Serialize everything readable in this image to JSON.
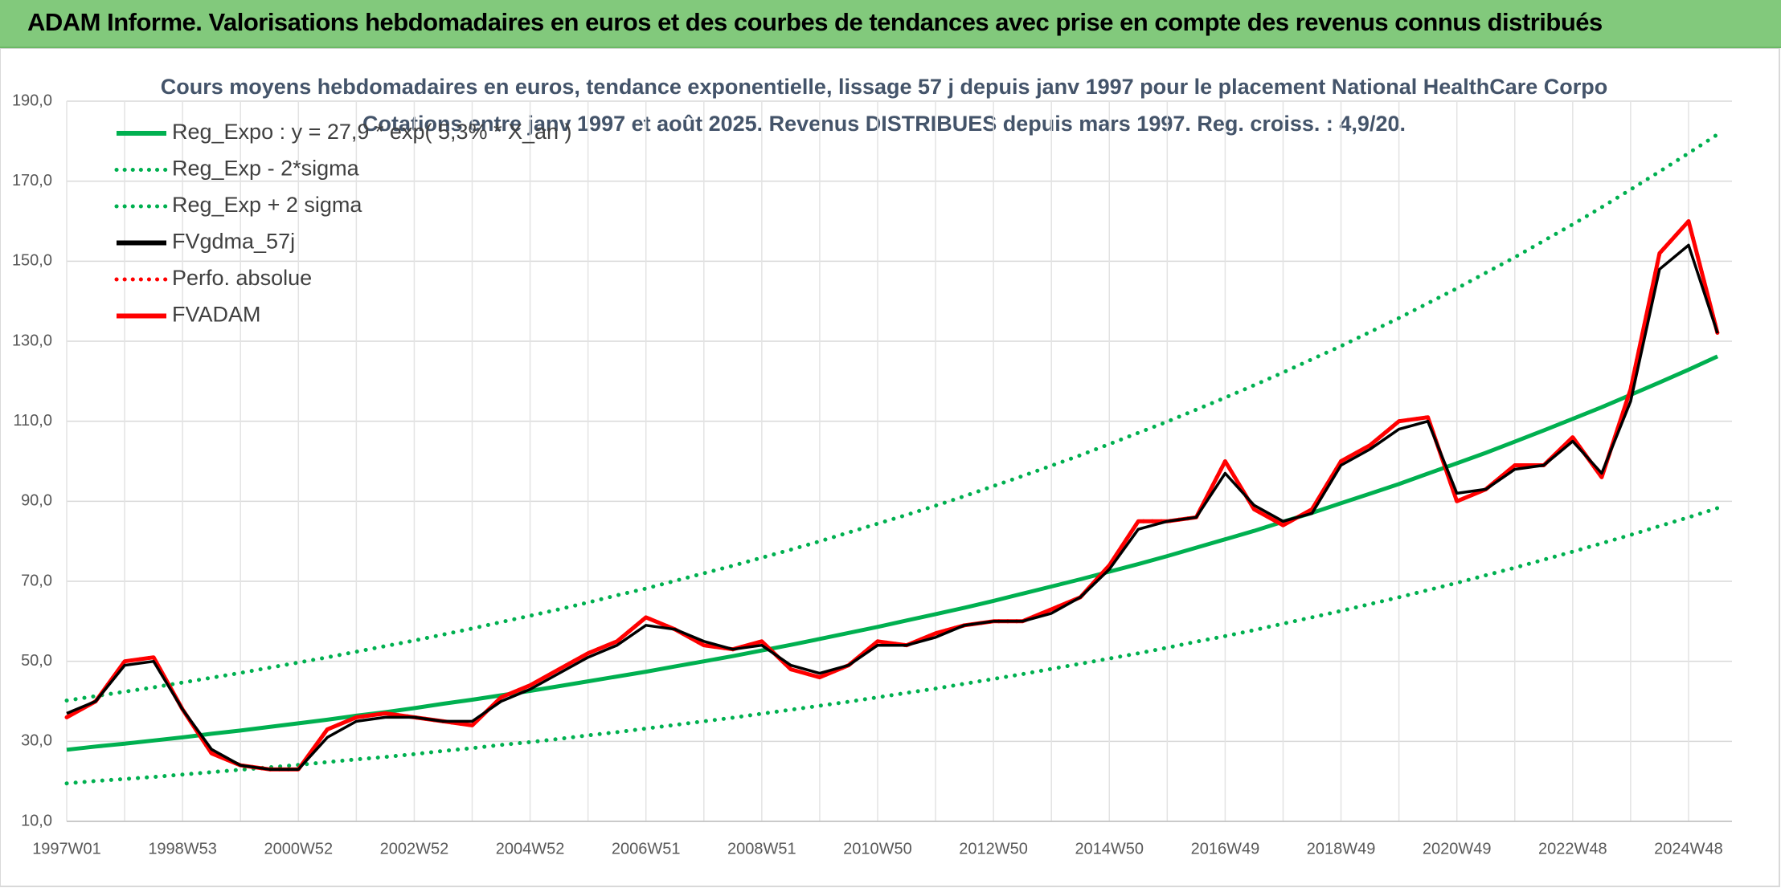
{
  "header": {
    "title": "ADAM Informe. Valorisations hebdomadaires en euros et des courbes de tendances avec prise en compte des revenus connus distribués"
  },
  "chart_data": {
    "type": "line",
    "title": "Cours moyens hebdomadaires en euros, tendance exponentielle, lissage 57 j depuis janv 1997 pour le placement National HealthCare Corpo",
    "subtitle": "Cotations entre janv 1997 et août 2025. Revenus DISTRIBUES depuis mars 1997. Reg. croiss. : 4,9/20.",
    "categories": [
      "1997W01",
      null,
      null,
      null,
      "1998W53",
      null,
      null,
      null,
      "2000W52",
      null,
      null,
      null,
      "2002W52",
      null,
      null,
      null,
      "2004W52",
      null,
      null,
      null,
      "2006W51",
      null,
      null,
      null,
      "2008W51",
      null,
      null,
      null,
      "2010W50",
      null,
      null,
      null,
      "2012W50",
      null,
      null,
      null,
      "2014W50",
      null,
      null,
      null,
      "2016W49",
      null,
      null,
      null,
      "2018W49",
      null,
      null,
      null,
      "2020W49",
      null,
      null,
      null,
      "2022W48",
      null,
      null,
      null,
      "2024W48",
      null
    ],
    "ylim": [
      10,
      190
    ],
    "yticks": [
      {
        "value": 10,
        "label": "10,0"
      },
      {
        "value": 30,
        "label": "30,0"
      },
      {
        "value": 50,
        "label": "50,0"
      },
      {
        "value": 70,
        "label": "70,0"
      },
      {
        "value": 90,
        "label": "90,0"
      },
      {
        "value": 110,
        "label": "110,0"
      },
      {
        "value": 130,
        "label": "130,0"
      },
      {
        "value": 150,
        "label": "150,0"
      },
      {
        "value": 170,
        "label": "170,0"
      },
      {
        "value": 190,
        "label": "190,0"
      }
    ],
    "grid": true,
    "series": [
      {
        "name": "Reg_Expo : y = 27,9 * exp( 5,3% *  X_an )",
        "color": "#00b050",
        "style": "solid",
        "values": [
          27.9,
          28.7,
          29.4,
          30.2,
          31.0,
          31.9,
          32.7,
          33.6,
          34.5,
          35.4,
          36.4,
          37.3,
          38.3,
          39.4,
          40.4,
          41.5,
          42.6,
          43.8,
          45.0,
          46.2,
          47.4,
          48.7,
          50.0,
          51.3,
          52.7,
          54.1,
          55.6,
          57.1,
          58.6,
          60.2,
          61.8,
          63.4,
          65.1,
          66.9,
          68.7,
          70.5,
          72.4,
          74.3,
          76.3,
          78.4,
          80.5,
          82.6,
          84.9,
          87.1,
          89.5,
          91.9,
          94.3,
          96.9,
          99.5,
          102.1,
          104.9,
          107.7,
          110.6,
          113.5,
          116.6,
          119.7,
          122.9,
          126.2
        ]
      },
      {
        "name": "Reg_Exp - 2*sigma",
        "color": "#00b050",
        "style": "dotted",
        "values": [
          19.5,
          20.1,
          20.6,
          21.1,
          21.7,
          22.3,
          22.9,
          23.5,
          24.1,
          24.8,
          25.5,
          26.1,
          26.8,
          27.6,
          28.3,
          29.1,
          29.8,
          30.6,
          31.5,
          32.3,
          33.2,
          34.1,
          35.0,
          35.9,
          36.9,
          37.9,
          38.9,
          39.9,
          41.0,
          42.1,
          43.2,
          44.4,
          45.6,
          46.8,
          48.1,
          49.4,
          50.7,
          52.0,
          53.4,
          54.9,
          56.3,
          57.8,
          59.4,
          61.0,
          62.6,
          64.3,
          66.0,
          67.8,
          69.6,
          71.5,
          73.4,
          75.4,
          77.4,
          79.5,
          81.6,
          83.8,
          86.0,
          88.3
        ]
      },
      {
        "name": "Reg_Exp + 2 sigma",
        "color": "#00b050",
        "style": "dotted",
        "values": [
          40.2,
          41.3,
          42.4,
          43.5,
          44.7,
          45.9,
          47.1,
          48.4,
          49.7,
          51.0,
          52.4,
          53.8,
          55.2,
          56.7,
          58.2,
          59.8,
          61.4,
          63.0,
          64.7,
          66.5,
          68.2,
          70.1,
          72.0,
          73.9,
          75.9,
          77.9,
          80.0,
          82.2,
          84.4,
          86.6,
          88.9,
          91.3,
          93.8,
          96.3,
          98.9,
          101.5,
          104.3,
          107.1,
          109.9,
          112.9,
          115.9,
          119.0,
          122.2,
          125.5,
          128.8,
          132.3,
          135.8,
          139.5,
          143.2,
          147.1,
          151.0,
          155.1,
          159.2,
          163.5,
          167.9,
          172.4,
          177.0,
          181.7
        ]
      },
      {
        "name": "FVgdma_57j",
        "color": "#000000",
        "style": "solid",
        "values": [
          37,
          40,
          49,
          50,
          38,
          28,
          24,
          23,
          23,
          31,
          35,
          36,
          36,
          35,
          35,
          40,
          43,
          47,
          51,
          54,
          59,
          58,
          55,
          53,
          54,
          49,
          47,
          49,
          54,
          54,
          56,
          59,
          60,
          60,
          62,
          66,
          73,
          83,
          85,
          86,
          97,
          89,
          85,
          87,
          99,
          103,
          108,
          110,
          92,
          93,
          98,
          99,
          105,
          97,
          115,
          148,
          154,
          132
        ]
      },
      {
        "name": "Perfo. absolue",
        "color": "#ff0000",
        "style": "dotted",
        "values": [
          36,
          40,
          50,
          51,
          38,
          27,
          24,
          23,
          23,
          33,
          36,
          37,
          36,
          35,
          34,
          41,
          44,
          48,
          52,
          55,
          61,
          58,
          54,
          53,
          55,
          48,
          46,
          49,
          55,
          54,
          57,
          59,
          60,
          60,
          63,
          66,
          74,
          85,
          85,
          86,
          100,
          88,
          84,
          88,
          100,
          104,
          110,
          111,
          90,
          93,
          99,
          99,
          106,
          96,
          118,
          152,
          160,
          132
        ]
      },
      {
        "name": "FVADAM",
        "color": "#ff0000",
        "style": "solid",
        "values": [
          36,
          40,
          50,
          51,
          38,
          27,
          24,
          23,
          23,
          33,
          36,
          37,
          36,
          35,
          34,
          41,
          44,
          48,
          52,
          55,
          61,
          58,
          54,
          53,
          55,
          48,
          46,
          49,
          55,
          54,
          57,
          59,
          60,
          60,
          63,
          66,
          74,
          85,
          85,
          86,
          100,
          88,
          84,
          88,
          100,
          104,
          110,
          111,
          90,
          93,
          99,
          99,
          106,
          96,
          118,
          152,
          160,
          132
        ]
      }
    ]
  }
}
